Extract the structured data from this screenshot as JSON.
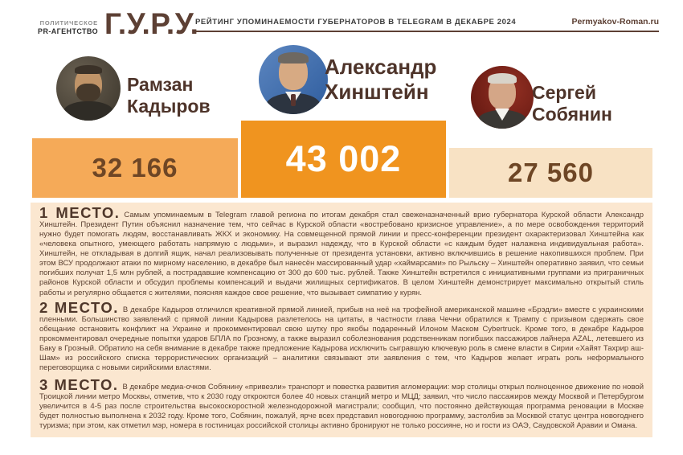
{
  "header": {
    "agency_line1": "ПОЛИТИЧЕСКОЕ",
    "agency_line2": "PR-АГЕНТСТВО",
    "logo": "Г.У.Р.У.",
    "subtitle": "РЕЙТИНГ УПОМИНАЕМОСТИ ГУБЕРНАТОРОВ В TELEGRAM В ДЕКАБРЕ 2024",
    "site": "Permyakov-Roman.ru"
  },
  "chart_data": {
    "type": "bar",
    "title": "РЕЙТИНГ УПОМИНАЕМОСТИ ГУБЕРНАТОРОВ В TELEGRAM В ДЕКАБРЕ 2024",
    "categories": [
      "Рамзан Кадыров",
      "Александр Хинштейн",
      "Сергей Собянин"
    ],
    "values": [
      32166,
      43002,
      27560
    ],
    "display_values": [
      "32 166",
      "43 002",
      "27 560"
    ],
    "bar_colors": [
      "#f5aa58",
      "#f0941f",
      "#f8e2c4"
    ],
    "layout": "podium, winner centered",
    "value_label_colors": [
      "#6e4625",
      "#ffffff",
      "#6e4625"
    ]
  },
  "podium": [
    {
      "name_line1": "Рамзан",
      "name_line2": "Кадыров",
      "rank": 2
    },
    {
      "name_line1": "Александр",
      "name_line2": "Хинштейн",
      "rank": 1
    },
    {
      "name_line1": "Сергей",
      "name_line2": "Собянин",
      "rank": 3
    }
  ],
  "sections": [
    {
      "rank": "1 МЕСТО.",
      "text": "Самым упоминаемым в Telegram главой региона по итогам декабря стал свеженазначенный врио губернатора Курской области Александр Хинштейн. Президент Путин объяснил назначение тем, что сейчас в Курской области «востребовано кризисное управление», а по мере освобождения территорий нужно будет помогать людям, восстанавливать ЖКХ и экономику. На совмещенной прямой линии и пресс-конференции президент охарактеризовал Хинштейна как «человека опытного, умеющего работать напрямую с людьми», и выразил надежду, что в Курской области «с каждым будет налажена индивидуальная работа». Хинштейн, не откладывая в долгий ящик, начал реализовывать полученные от президента установки, активно включившись в решение накопившихся проблем. При этом ВСУ продолжают атаки по мирному населению, в декабре был нанесён массированный удар «хаймарсами» по Рыльску – Хинштейн оперативно заявил, что семьи погибших получат 1,5 млн рублей, а пострадавшие компенсацию от 300 до 600 тыс. рублей. Также Хинштейн встретился с инициативными группами из приграничных районов Курской области и обсудил проблемы компенсаций и выдачи жилищных сертификатов. В целом Хинштейн демонстрирует максимально открытый стиль работы и регулярно общается с жителями, поясняя каждое свое решение, что вызывает симпатию у курян."
    },
    {
      "rank": "2 МЕСТО.",
      "text": "В декабре Кадыров отличился креативной прямой линией, прибыв на неё на трофейной американской машине «Брэдли» вместе с украинскими пленными. Большинство заявлений с прямой линии Кадырова разлетелось на цитаты, в частности глава Чечни обратился к Трампу с призывом сдержать свое обещание остановить конфликт на Украине и прокомментировал свою шутку про якобы подаренный Илоном Маском Cybertruck. Кроме того, в декабре Кадыров прокомментировал очередные попытки ударов БПЛА по Грозному, а также выразил соболезнования родственникам погибших пассажиров лайнера AZAL, летевшего из Баку в Грозный. Обратило на себя внимание в декабре также предложение Кадырова исключить сыгравшую ключевую роль в смене власти в Сирии «Хайят Тахрир аш-Шам» из российского списка террористических организаций – аналитики связывают эти заявления с тем, что Кадыров желает играть роль неформального переговорщика с новыми сирийскими властями."
    },
    {
      "rank": "3 МЕСТО.",
      "text": "В декабре медиа-очков Собянину «привезли» транспорт и повестка развития агломерации: мэр столицы открыл полноценное движение по новой Троицкой линии метро Москвы, отметив, что к 2030 году откроются более 40 новых станций метро и МЦД; заявил, что число пассажиров между Москвой и Петербургом увеличится в 4-5 раз после строительства высокоскоростной железнодорожной магистрали; сообщил, что постоянно действующая программа реновации в Москве будет полностью выполнена к 2032 году. Кроме того, Собянин, пожалуй, ярче всех представил новогоднюю программу, застолбив за Москвой статус центра новогоднего туризма; при этом, как отметил мэр, номера в гостиницах российской столицы активно бронируют не только россияне, но и гости из ОАЭ, Саудовской Аравии и Омана."
    }
  ]
}
